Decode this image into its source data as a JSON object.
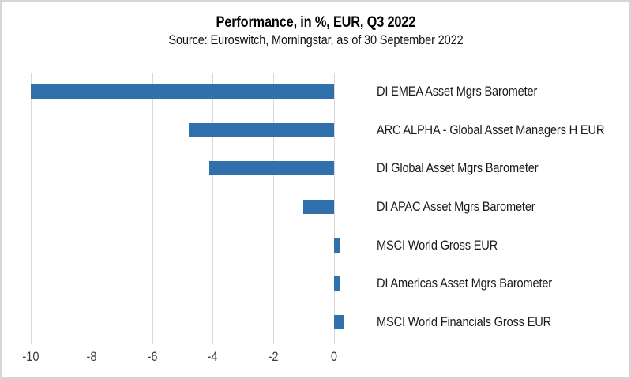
{
  "header": {
    "title": "Performance, in %, EUR, Q3 2022",
    "subtitle": "Source: Euroswitch, Morningstar, as of 30 September 2022"
  },
  "chart_data": {
    "type": "bar",
    "orientation": "horizontal",
    "title": "Performance, in %, EUR, Q3 2022",
    "subtitle": "Source: Euroswitch, Morningstar, as of 30 September 2022",
    "categories": [
      "DI EMEA Asset Mgrs Barometer",
      "ARC ALPHA - Global Asset Managers H EUR",
      "DI Global Asset Mgrs Barometer",
      "DI APAC Asset Mgrs Barometer",
      "MSCI World Gross EUR",
      "DI Americas Asset Mgrs Barometer",
      "MSCI World Financials Gross EUR"
    ],
    "values": [
      -10.0,
      -4.8,
      -4.1,
      -1.0,
      0.2,
      0.2,
      0.35
    ],
    "xlabel": "",
    "ylabel": "",
    "xlim": [
      -10,
      1
    ],
    "xticks": [
      -10,
      -8,
      -6,
      -4,
      -2,
      0
    ],
    "grid": true,
    "legend": false,
    "bar_color": "#2F70AD",
    "gridline_color": "#D9D9D9",
    "axis_label_color": "#3A3A3A",
    "category_label_color": "#1A1A1A"
  }
}
